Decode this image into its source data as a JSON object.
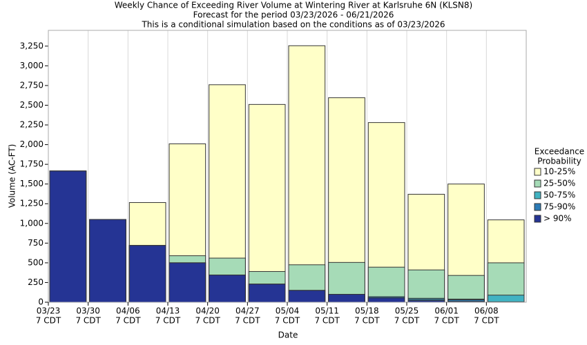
{
  "chart_data": {
    "type": "bar",
    "title": [
      "Weekly Chance of Exceeding River Volume at Wintering River at Karlsruhe 6N (KLSN8)",
      "Forecast for the period 03/23/2026 - 06/21/2026",
      "This is a conditional simulation based on the conditions as of 03/23/2026"
    ],
    "x_label": "Date",
    "y_label": "Volume (AC-FT)",
    "categories": [
      "03/23",
      "03/30",
      "04/06",
      "04/13",
      "04/20",
      "04/27",
      "05/04",
      "05/11",
      "05/18",
      "05/25",
      "06/01",
      "06/08"
    ],
    "category_sublabels": [
      "7 CDT",
      "7 CDT",
      "7 CDT",
      "7 CDT",
      "7 CDT",
      "7 CDT",
      "7 CDT",
      "7 CDT",
      "7 CDT",
      "7 CDT",
      "7 CDT",
      "7 CDT"
    ],
    "legend_title": [
      "Exceedance",
      "Probability"
    ],
    "series": [
      {
        "name": "10-25%",
        "color": "#ffffc8",
        "values": [
          1665,
          1050,
          1265,
          2010,
          2760,
          2510,
          3255,
          2595,
          2280,
          1370,
          1500,
          1045
        ]
      },
      {
        "name": "25-50%",
        "color": "#a6dbb7",
        "values": [
          1665,
          1050,
          720,
          590,
          560,
          390,
          475,
          505,
          445,
          410,
          340,
          500
        ]
      },
      {
        "name": "50-75%",
        "color": "#41b3c2",
        "values": [
          1665,
          1050,
          720,
          500,
          345,
          230,
          150,
          100,
          70,
          50,
          40,
          90
        ]
      },
      {
        "name": "75-90%",
        "color": "#2c7bb6",
        "values": [
          1665,
          1050,
          720,
          500,
          345,
          230,
          150,
          100,
          70,
          35,
          30,
          5
        ]
      },
      {
        "name": "> 90%",
        "color": "#253494",
        "values": [
          1665,
          1050,
          720,
          500,
          345,
          230,
          150,
          100,
          55,
          20,
          10,
          0
        ]
      }
    ],
    "ylim": [
      0,
      3450
    ],
    "yticks": [
      0,
      250,
      500,
      750,
      {
        "value": 1000,
        "label": "1,000"
      },
      {
        "value": 1250,
        "label": "1,250"
      },
      {
        "value": 1500,
        "label": "1,500"
      },
      {
        "value": 1750,
        "label": "1,750"
      },
      {
        "value": 2000,
        "label": "2,000"
      },
      {
        "value": 2250,
        "label": "2,250"
      },
      {
        "value": 2500,
        "label": "2,500"
      },
      {
        "value": 2750,
        "label": "2,750"
      },
      {
        "value": 3000,
        "label": "3,000"
      },
      {
        "value": 3250,
        "label": "3,250"
      }
    ],
    "grid": true
  }
}
